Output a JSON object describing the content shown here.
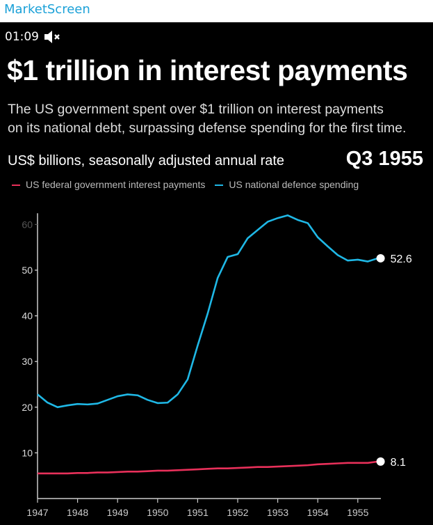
{
  "app": {
    "brand": "MarketScreen",
    "timer": "01:09",
    "mute_icon": "speaker-muted-icon"
  },
  "header": {
    "title": "$1 trillion in interest payments",
    "subtitle_line1": "The US government spent over $1 trillion on interest payments",
    "subtitle_line2": "on its national debt, surpassing defense spending for the first time.",
    "unit": "US$ billions, seasonally adjusted annual rate",
    "period": "Q3 1955"
  },
  "chart_data": {
    "type": "line",
    "title": "$1 trillion in interest payments",
    "ylabel": "US$ billions, seasonally adjusted annual rate",
    "xlabel": "",
    "ylim": [
      0,
      62
    ],
    "x_start": 1947,
    "x_step": 0.25,
    "xticks": [
      "1947",
      "1948",
      "1949",
      "1950",
      "1951",
      "1952",
      "1953",
      "1954",
      "1955"
    ],
    "yticks": [
      "10",
      "20",
      "30",
      "40",
      "50",
      "60"
    ],
    "legend": "top-left",
    "series": [
      {
        "name": "US federal government interest payments",
        "color": "#e8305a",
        "end_label": "8.1",
        "values": [
          5.5,
          5.5,
          5.5,
          5.5,
          5.6,
          5.6,
          5.7,
          5.7,
          5.8,
          5.9,
          5.9,
          6.0,
          6.1,
          6.1,
          6.2,
          6.3,
          6.4,
          6.5,
          6.6,
          6.6,
          6.7,
          6.8,
          6.9,
          6.9,
          7.0,
          7.1,
          7.2,
          7.3,
          7.5,
          7.6,
          7.7,
          7.8,
          7.8,
          7.8,
          8.1
        ]
      },
      {
        "name": "US national defence spending",
        "color": "#1fb8e6",
        "end_label": "52.6",
        "values": [
          22.8,
          21.0,
          20.0,
          20.4,
          20.7,
          20.6,
          20.8,
          21.6,
          22.4,
          22.8,
          22.6,
          21.6,
          20.9,
          21.0,
          22.8,
          26.1,
          33.5,
          40.5,
          48.3,
          52.9,
          53.5,
          57.0,
          58.8,
          60.6,
          61.4,
          62.0,
          61.0,
          60.3,
          57.2,
          55.2,
          53.3,
          52.1,
          52.3,
          51.9,
          52.6
        ]
      }
    ]
  }
}
